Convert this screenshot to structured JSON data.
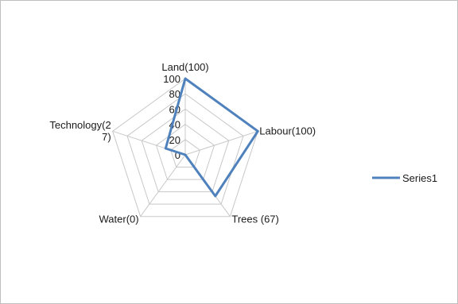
{
  "chart_data": {
    "type": "radar",
    "categories": [
      "Land(100)",
      "Labour(100)",
      "Trees (67)",
      "Water(0)",
      "Technology(27)"
    ],
    "category_label_lines": [
      [
        "Land(100)"
      ],
      [
        "Labour(100)"
      ],
      [
        "Trees (67)"
      ],
      [
        "Water(0)"
      ],
      [
        "Technology(2",
        "7)"
      ]
    ],
    "series": [
      {
        "name": "Series1",
        "values": [
          100,
          100,
          67,
          0,
          27
        ],
        "color": "#4f81bd"
      }
    ],
    "rlim": [
      0,
      100
    ],
    "ticks": [
      0,
      20,
      40,
      60,
      80,
      100
    ],
    "tick_labels": [
      "0",
      "20",
      "40",
      "60",
      "80",
      "100"
    ],
    "grid": true,
    "legend": "right"
  }
}
